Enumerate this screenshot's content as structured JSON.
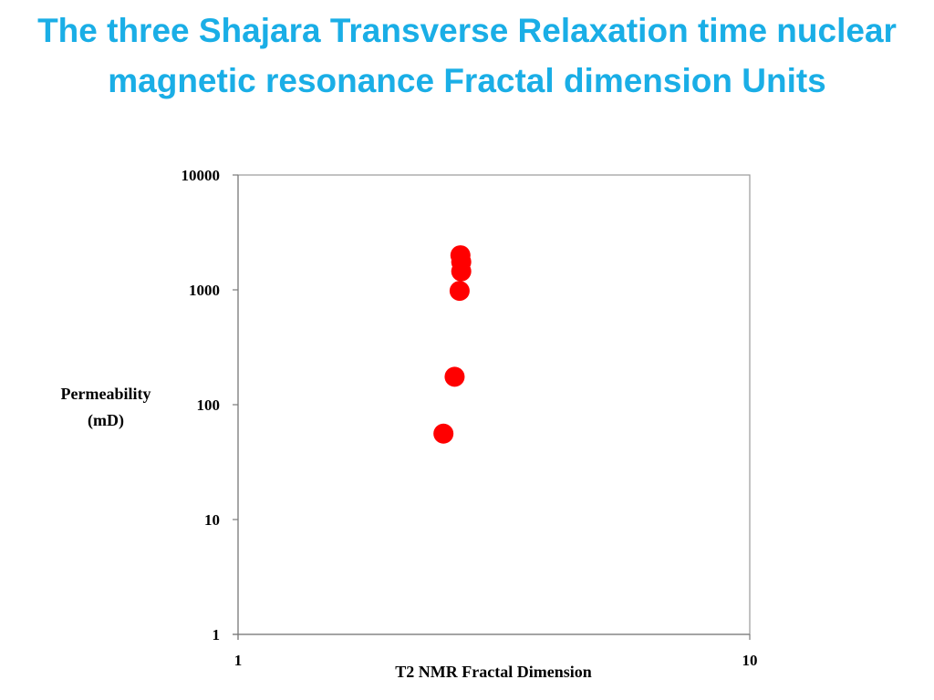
{
  "title": "The three Shajara Transverse Relaxation time nuclear magnetic resonance Fractal dimension Units",
  "chart_data": {
    "type": "scatter",
    "xlabel": "T2  NMR Fractal Dimension",
    "ylabel_lines": [
      "Permeability",
      "(mD)"
    ],
    "x_scale": "log",
    "y_scale": "log",
    "xlim": [
      1,
      10
    ],
    "ylim": [
      1,
      10000
    ],
    "x_ticks": [
      "1",
      "10"
    ],
    "y_ticks": [
      "1",
      "10",
      "100",
      "1000",
      "10000"
    ],
    "grid": false,
    "legend": "none",
    "marker_color": "#ff0000",
    "points": [
      {
        "x": 2.72,
        "y": 2000
      },
      {
        "x": 2.73,
        "y": 1750
      },
      {
        "x": 2.73,
        "y": 1450
      },
      {
        "x": 2.71,
        "y": 980
      },
      {
        "x": 2.65,
        "y": 175
      },
      {
        "x": 2.52,
        "y": 56
      }
    ]
  }
}
